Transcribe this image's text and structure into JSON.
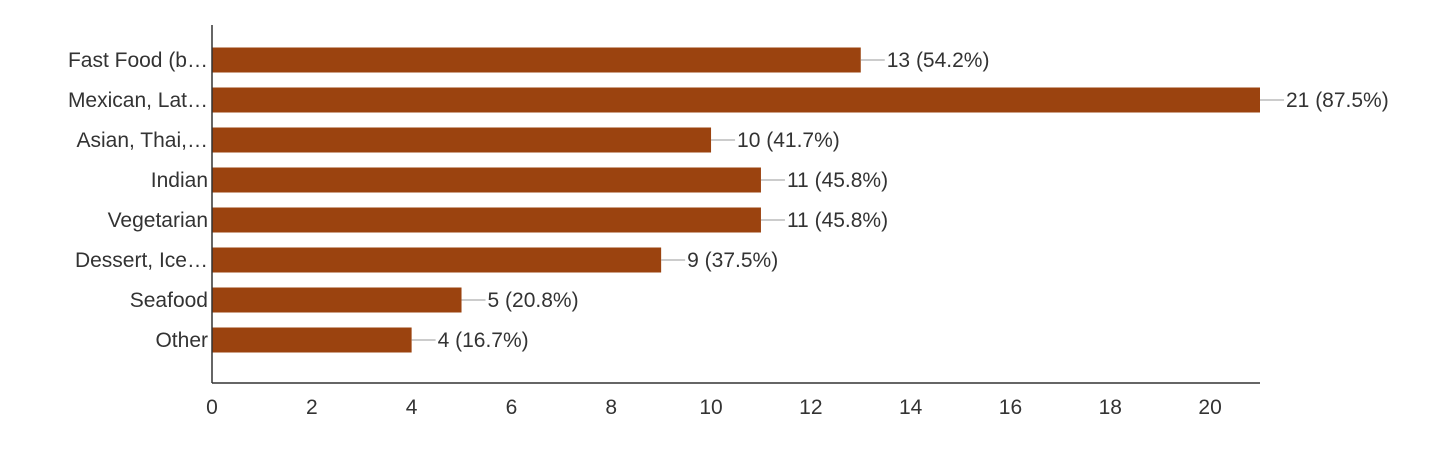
{
  "chart_data": {
    "type": "bar",
    "orientation": "horizontal",
    "categories": [
      "Fast Food (b…",
      "Mexican, Lat…",
      "Asian, Thai,…",
      "Indian",
      "Vegetarian",
      "Dessert, Ice…",
      "Seafood",
      "Other"
    ],
    "values": [
      13,
      21,
      10,
      11,
      11,
      9,
      5,
      4
    ],
    "data_labels": [
      "13 (54.2%)",
      "21 (87.5%)",
      "10 (41.7%)",
      "11 (45.8%)",
      "11 (45.8%)",
      "9 (37.5%)",
      "5 (20.8%)",
      "4 (16.7%)"
    ],
    "xlim": [
      0,
      21
    ],
    "x_ticks": [
      0,
      2,
      4,
      6,
      8,
      10,
      12,
      14,
      16,
      18,
      20
    ],
    "x_tick_labels": [
      "0",
      "2",
      "4",
      "6",
      "8",
      "10",
      "12",
      "14",
      "16",
      "18",
      "20"
    ],
    "grid": false,
    "title": "",
    "xlabel": "",
    "ylabel": "",
    "colors": {
      "bar": "#9b430f",
      "axis": "#333333",
      "leader": "#999999",
      "text": "#333333"
    }
  }
}
